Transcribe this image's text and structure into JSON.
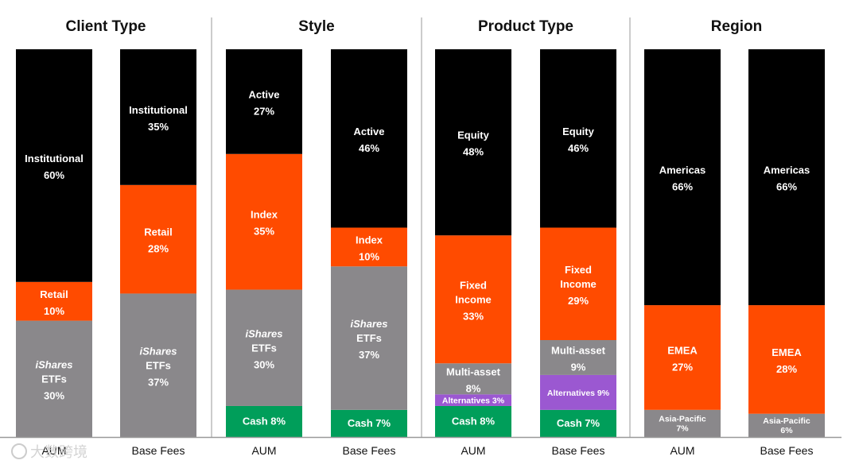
{
  "colors": {
    "black": "#000000",
    "orange": "#ff4b00",
    "gray": "#8a888b",
    "green": "#009e5a",
    "purple": "#9b58d1",
    "divider": "#bbbbbb",
    "baseline": "#999999"
  },
  "watermark": "大数跨境",
  "chart_data": [
    {
      "type": "bar",
      "stacked": true,
      "percent": true,
      "title": "Client Type",
      "categories": [
        "AUM",
        "Base Fees"
      ],
      "bars": [
        {
          "category": "AUM",
          "segments": [
            {
              "name": "iShares ETFs",
              "lines": [
                "iShares",
                "ETFs"
              ],
              "pct_label": "30%",
              "value": 30,
              "color": "gray"
            },
            {
              "name": "Retail",
              "lines": [
                "Retail"
              ],
              "pct_label": "10%",
              "value": 10,
              "color": "orange"
            },
            {
              "name": "Institutional",
              "lines": [
                "Institutional"
              ],
              "pct_label": "60%",
              "value": 60,
              "color": "black"
            }
          ]
        },
        {
          "category": "Base Fees",
          "segments": [
            {
              "name": "iShares ETFs",
              "lines": [
                "iShares",
                "ETFs"
              ],
              "pct_label": "37%",
              "value": 37,
              "color": "gray"
            },
            {
              "name": "Retail",
              "lines": [
                "Retail"
              ],
              "pct_label": "28%",
              "value": 28,
              "color": "orange"
            },
            {
              "name": "Institutional",
              "lines": [
                "Institutional"
              ],
              "pct_label": "35%",
              "value": 35,
              "color": "black"
            }
          ]
        }
      ]
    },
    {
      "type": "bar",
      "stacked": true,
      "percent": true,
      "title": "Style",
      "categories": [
        "AUM",
        "Base Fees"
      ],
      "bars": [
        {
          "category": "AUM",
          "segments": [
            {
              "name": "Cash",
              "lines": [
                "Cash"
              ],
              "pct_label": "8%",
              "value": 8,
              "color": "green",
              "inline": true
            },
            {
              "name": "iShares ETFs",
              "lines": [
                "iShares",
                "ETFs"
              ],
              "pct_label": "30%",
              "value": 30,
              "color": "gray"
            },
            {
              "name": "Index",
              "lines": [
                "Index"
              ],
              "pct_label": "35%",
              "value": 35,
              "color": "orange"
            },
            {
              "name": "Active",
              "lines": [
                "Active"
              ],
              "pct_label": "27%",
              "value": 27,
              "color": "black"
            }
          ]
        },
        {
          "category": "Base Fees",
          "segments": [
            {
              "name": "Cash",
              "lines": [
                "Cash"
              ],
              "pct_label": "7%",
              "value": 7,
              "color": "green",
              "inline": true
            },
            {
              "name": "iShares ETFs",
              "lines": [
                "iShares",
                "ETFs"
              ],
              "pct_label": "37%",
              "value": 37,
              "color": "gray"
            },
            {
              "name": "Index",
              "lines": [
                "Index"
              ],
              "pct_label": "10%",
              "value": 10,
              "color": "orange"
            },
            {
              "name": "Active",
              "lines": [
                "Active"
              ],
              "pct_label": "46%",
              "value": 46,
              "color": "black"
            }
          ]
        }
      ]
    },
    {
      "type": "bar",
      "stacked": true,
      "percent": true,
      "title": "Product Type",
      "categories": [
        "AUM",
        "Base Fees"
      ],
      "bars": [
        {
          "category": "AUM",
          "segments": [
            {
              "name": "Cash",
              "lines": [
                "Cash"
              ],
              "pct_label": "8%",
              "value": 8,
              "color": "green",
              "inline": true
            },
            {
              "name": "Alternatives",
              "lines": [
                "Alternatives"
              ],
              "pct_label": "3%",
              "value": 3,
              "color": "purple",
              "inline": true,
              "small": true
            },
            {
              "name": "Multi-asset",
              "lines": [
                "Multi-asset"
              ],
              "pct_label": "8%",
              "value": 8,
              "color": "gray"
            },
            {
              "name": "Fixed Income",
              "lines": [
                "Fixed",
                "Income"
              ],
              "pct_label": "33%",
              "value": 33,
              "color": "orange"
            },
            {
              "name": "Equity",
              "lines": [
                "Equity"
              ],
              "pct_label": "48%",
              "value": 48,
              "color": "black"
            }
          ]
        },
        {
          "category": "Base Fees",
          "segments": [
            {
              "name": "Cash",
              "lines": [
                "Cash"
              ],
              "pct_label": "7%",
              "value": 7,
              "color": "green",
              "inline": true
            },
            {
              "name": "Alternatives",
              "lines": [
                "Alternatives"
              ],
              "pct_label": "9%",
              "value": 9,
              "color": "purple",
              "inline": true,
              "small": true
            },
            {
              "name": "Multi-asset",
              "lines": [
                "Multi-asset"
              ],
              "pct_label": "9%",
              "value": 9,
              "color": "gray"
            },
            {
              "name": "Fixed Income",
              "lines": [
                "Fixed",
                "Income"
              ],
              "pct_label": "29%",
              "value": 29,
              "color": "orange"
            },
            {
              "name": "Equity",
              "lines": [
                "Equity"
              ],
              "pct_label": "46%",
              "value": 46,
              "color": "black"
            }
          ]
        }
      ]
    },
    {
      "type": "bar",
      "stacked": true,
      "percent": true,
      "title": "Region",
      "categories": [
        "AUM",
        "Base Fees"
      ],
      "bars": [
        {
          "category": "AUM",
          "segments": [
            {
              "name": "Asia-Pacific",
              "lines": [
                "Asia-Pacific"
              ],
              "pct_label": "7%",
              "value": 7,
              "color": "gray",
              "small": true
            },
            {
              "name": "EMEA",
              "lines": [
                "EMEA"
              ],
              "pct_label": "27%",
              "value": 27,
              "color": "orange"
            },
            {
              "name": "Americas",
              "lines": [
                "Americas"
              ],
              "pct_label": "66%",
              "value": 66,
              "color": "black"
            }
          ]
        },
        {
          "category": "Base Fees",
          "segments": [
            {
              "name": "Asia-Pacific",
              "lines": [
                "Asia-Pacific"
              ],
              "pct_label": "6%",
              "value": 6,
              "color": "gray",
              "small": true
            },
            {
              "name": "EMEA",
              "lines": [
                "EMEA"
              ],
              "pct_label": "28%",
              "value": 28,
              "color": "orange"
            },
            {
              "name": "Americas",
              "lines": [
                "Americas"
              ],
              "pct_label": "66%",
              "value": 66,
              "color": "black"
            }
          ]
        }
      ]
    }
  ]
}
